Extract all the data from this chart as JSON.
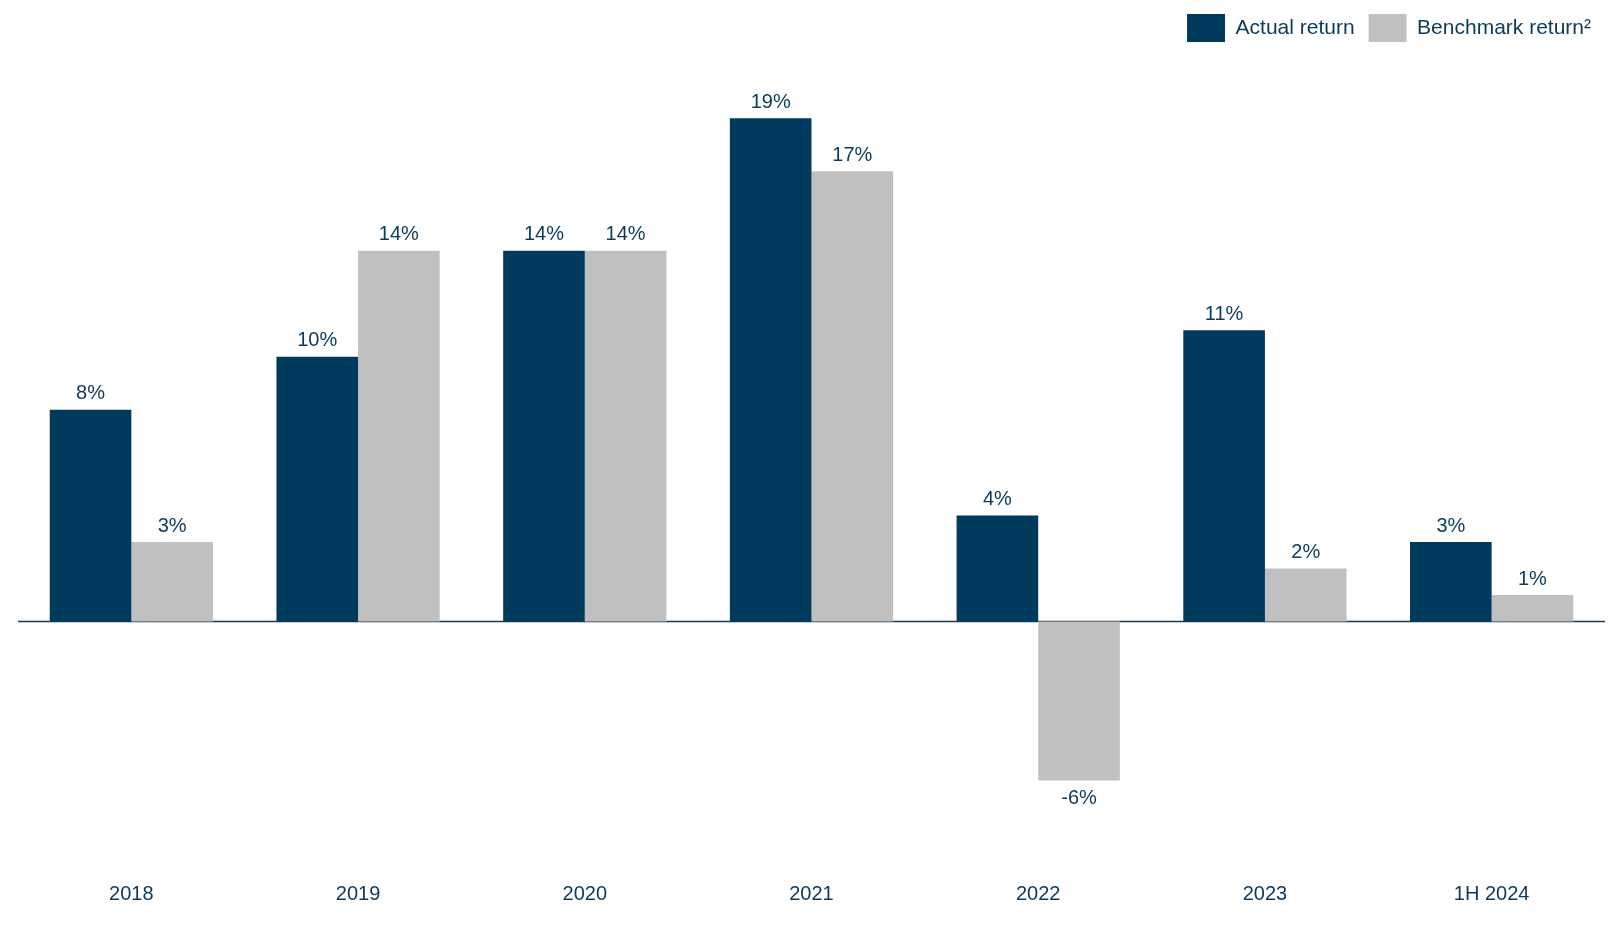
{
  "chart_data": {
    "type": "bar",
    "categories": [
      "2018",
      "2019",
      "2020",
      "2021",
      "2022",
      "2023",
      "1H 2024"
    ],
    "legend": "top right",
    "series": [
      {
        "name": "Actual return",
        "color": "#003a5c",
        "values": [
          8,
          10,
          14,
          19,
          4,
          11,
          3
        ],
        "value_labels": [
          "8%",
          "10%",
          "14%",
          "19%",
          "4%",
          "11%",
          "3%"
        ]
      },
      {
        "name": "Benchmark return²",
        "color": "#c0c0c0",
        "values": [
          3,
          14,
          14,
          17,
          -6,
          2,
          1
        ],
        "value_labels": [
          "3%",
          "14%",
          "14%",
          "17%",
          "-6%",
          "2%",
          "1%"
        ]
      }
    ]
  }
}
